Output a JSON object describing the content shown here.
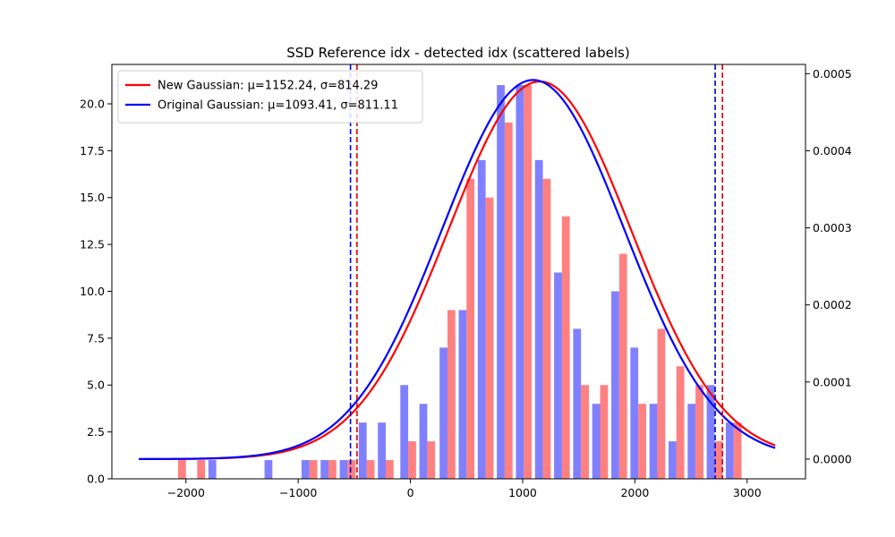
{
  "chart_data": {
    "type": "bar",
    "title": "SSD Reference idx - detected idx (scattered labels)",
    "xlabel": "",
    "ylabel": "",
    "xlim": [
      -2660,
      3520
    ],
    "ylim": [
      0,
      22.1
    ],
    "y2lim": [
      -2.56e-05,
      0.000512
    ],
    "x_ticks": [
      -2000,
      -1000,
      0,
      1000,
      2000,
      3000
    ],
    "x_tick_labels": [
      "−2000",
      "−1000",
      "0",
      "1000",
      "2000",
      "3000"
    ],
    "y_ticks": [
      0.0,
      2.5,
      5.0,
      7.5,
      10.0,
      12.5,
      15.0,
      17.5,
      20.0
    ],
    "y_tick_labels": [
      "0.0",
      "2.5",
      "5.0",
      "7.5",
      "10.0",
      "12.5",
      "15.0",
      "17.5",
      "20.0"
    ],
    "y2_ticks": [
      0.0,
      0.0001,
      0.0002,
      0.0003,
      0.0004,
      0.0005
    ],
    "y2_tick_labels": [
      "0.0000",
      "0.0001",
      "0.0002",
      "0.0003",
      "0.0004",
      "0.0005"
    ],
    "grid": false,
    "legend_position": "top-left",
    "bar_width": 70,
    "series": [
      {
        "kind": "histogram",
        "color": "#ff8080",
        "bins": [
          {
            "x": -2035,
            "value": 1
          },
          {
            "x": -1865,
            "value": 1
          },
          {
            "x": -865,
            "value": 1
          },
          {
            "x": -695,
            "value": 1
          },
          {
            "x": -525,
            "value": 1
          },
          {
            "x": -355,
            "value": 1
          },
          {
            "x": -185,
            "value": 1
          },
          {
            "x": 15,
            "value": 2
          },
          {
            "x": 185,
            "value": 2
          },
          {
            "x": 365,
            "value": 9
          },
          {
            "x": 535,
            "value": 16
          },
          {
            "x": 705,
            "value": 15
          },
          {
            "x": 875,
            "value": 19
          },
          {
            "x": 1045,
            "value": 21
          },
          {
            "x": 1215,
            "value": 16
          },
          {
            "x": 1385,
            "value": 14
          },
          {
            "x": 1555,
            "value": 5
          },
          {
            "x": 1725,
            "value": 5
          },
          {
            "x": 1895,
            "value": 12
          },
          {
            "x": 2065,
            "value": 4
          },
          {
            "x": 2235,
            "value": 8
          },
          {
            "x": 2405,
            "value": 6
          },
          {
            "x": 2575,
            "value": 5
          },
          {
            "x": 2745,
            "value": 2
          },
          {
            "x": 2915,
            "value": 3
          }
        ]
      },
      {
        "kind": "histogram",
        "color": "#8080ff",
        "bins": [
          {
            "x": -1765,
            "value": 1
          },
          {
            "x": -1265,
            "value": 1
          },
          {
            "x": -935,
            "value": 1
          },
          {
            "x": -765,
            "value": 1
          },
          {
            "x": -595,
            "value": 1
          },
          {
            "x": -425,
            "value": 3
          },
          {
            "x": -255,
            "value": 3
          },
          {
            "x": -55,
            "value": 5
          },
          {
            "x": 115,
            "value": 4
          },
          {
            "x": 295,
            "value": 7
          },
          {
            "x": 465,
            "value": 9
          },
          {
            "x": 635,
            "value": 17
          },
          {
            "x": 805,
            "value": 21
          },
          {
            "x": 975,
            "value": 21
          },
          {
            "x": 1145,
            "value": 17
          },
          {
            "x": 1315,
            "value": 11
          },
          {
            "x": 1485,
            "value": 8
          },
          {
            "x": 1655,
            "value": 4
          },
          {
            "x": 1825,
            "value": 10
          },
          {
            "x": 1995,
            "value": 7
          },
          {
            "x": 2165,
            "value": 4
          },
          {
            "x": 2335,
            "value": 2
          },
          {
            "x": 2505,
            "value": 4
          },
          {
            "x": 2675,
            "value": 5
          },
          {
            "x": 2845,
            "value": 3
          }
        ]
      },
      {
        "kind": "gaussian",
        "name": "New Gaussian: μ=1152.24, σ=814.29",
        "color": "#ff0000",
        "mu": 1152.24,
        "sigma": 814.29,
        "x_range": [
          -2420,
          3250
        ],
        "axis": "right"
      },
      {
        "kind": "gaussian",
        "name": "Original Gaussian: μ=1093.41, σ=811.11",
        "color": "#0000ff",
        "mu": 1093.41,
        "sigma": 811.11,
        "x_range": [
          -2420,
          3250
        ],
        "axis": "right"
      }
    ],
    "vlines": [
      {
        "x": -534,
        "color": "#0000dd"
      },
      {
        "x": -476,
        "color": "#dd0000"
      },
      {
        "x": 2715,
        "color": "#0000dd"
      },
      {
        "x": 2780,
        "color": "#dd0000"
      }
    ]
  }
}
